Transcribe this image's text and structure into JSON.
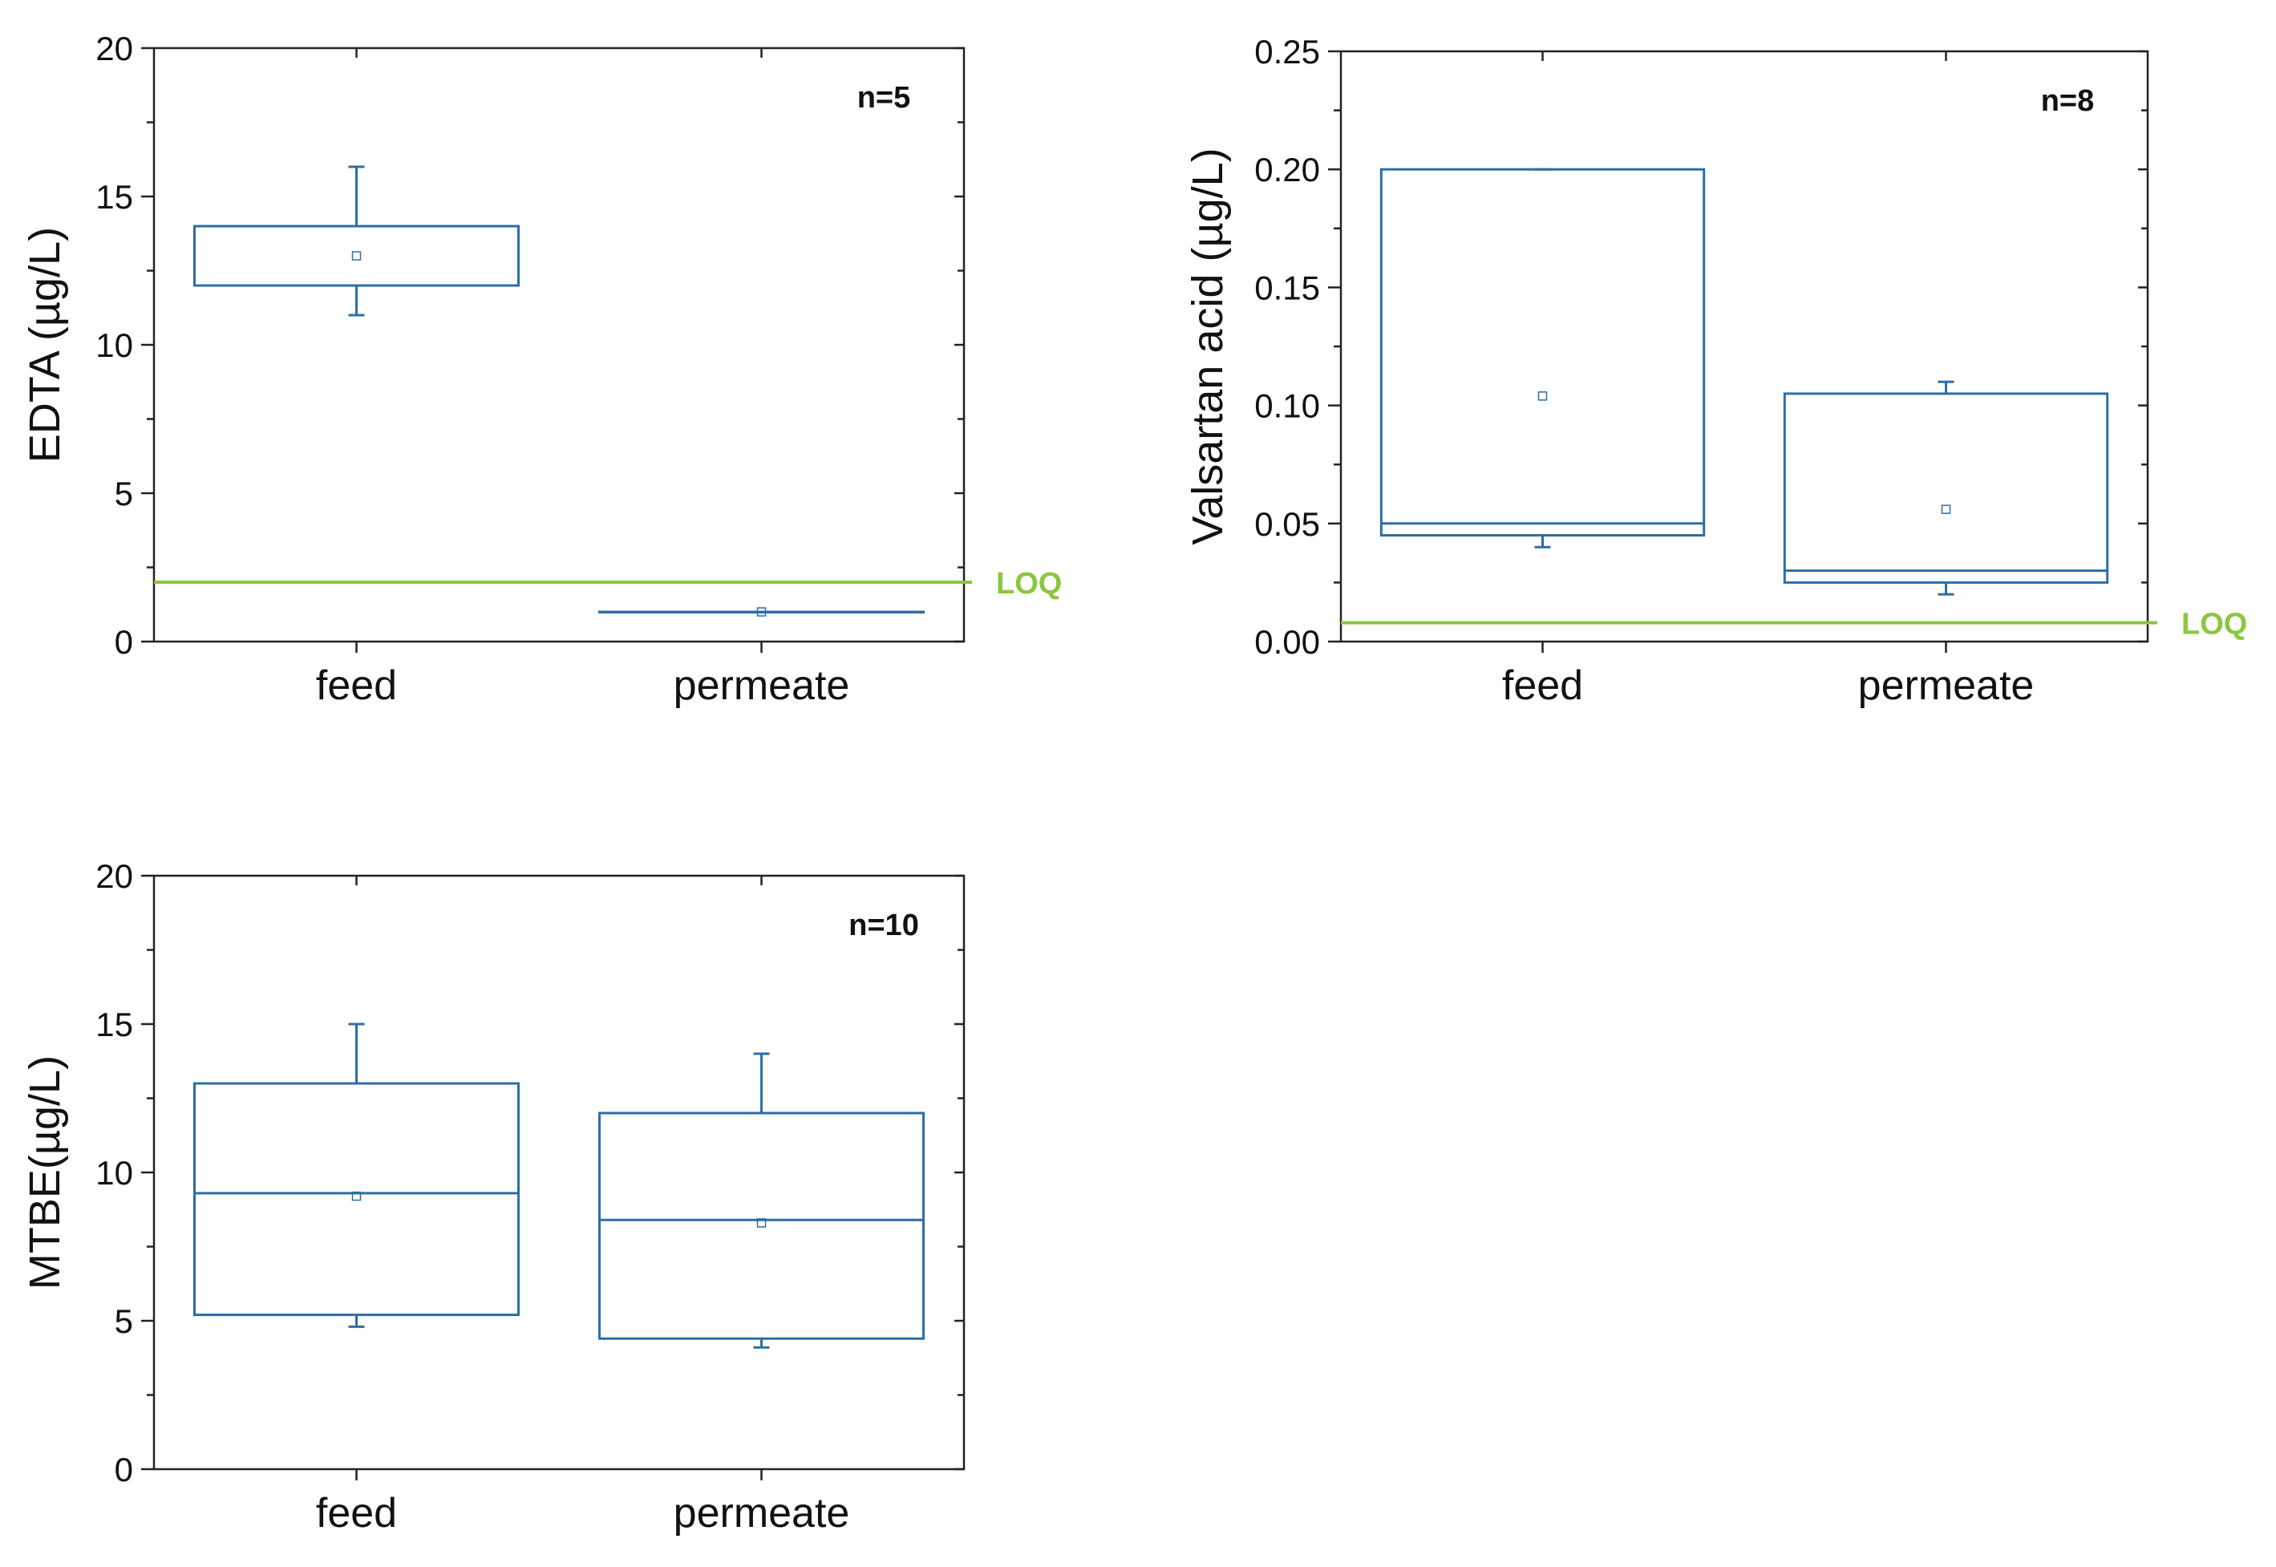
{
  "chart_data": [
    {
      "type": "box",
      "title": "",
      "xlabel": "",
      "ylabel": "EDTA (µg/L)",
      "ylim": [
        0,
        20
      ],
      "yticks": [
        0,
        5,
        10,
        15,
        20
      ],
      "ytick_labels": [
        "0",
        "5",
        "10",
        "15",
        "20"
      ],
      "categories": [
        "feed",
        "permeate"
      ],
      "n_label": "n=5",
      "loq": {
        "label": "LOQ",
        "value": 2
      },
      "boxes": [
        {
          "category": "feed",
          "whisker_low": 11,
          "q1": 12,
          "median": 12,
          "q3": 14,
          "whisker_high": 16,
          "mean": 13
        },
        {
          "category": "permeate",
          "whisker_low": 1,
          "q1": 1,
          "median": 1,
          "q3": 1,
          "whisker_high": 1,
          "mean": 1
        }
      ]
    },
    {
      "type": "box",
      "title": "",
      "xlabel": "",
      "ylabel": "Valsartan acid (µg/L)",
      "ylim": [
        0,
        0.25
      ],
      "yticks": [
        0,
        0.05,
        0.1,
        0.15,
        0.2,
        0.25
      ],
      "ytick_labels": [
        "0.00",
        "0.05",
        "0.10",
        "0.15",
        "0.20",
        "0.25"
      ],
      "categories": [
        "feed",
        "permeate"
      ],
      "n_label": "n=8",
      "loq": {
        "label": "LOQ",
        "value": 0.008
      },
      "boxes": [
        {
          "category": "feed",
          "whisker_low": 0.04,
          "q1": 0.045,
          "median": 0.05,
          "q3": 0.2,
          "whisker_high": 0.2,
          "mean": 0.104
        },
        {
          "category": "permeate",
          "whisker_low": 0.02,
          "q1": 0.025,
          "median": 0.03,
          "q3": 0.105,
          "whisker_high": 0.11,
          "mean": 0.056
        }
      ]
    },
    {
      "type": "box",
      "title": "",
      "xlabel": "",
      "ylabel": "MTBE(µg/L)",
      "ylim": [
        0,
        20
      ],
      "yticks": [
        0,
        5,
        10,
        15,
        20
      ],
      "ytick_labels": [
        "0",
        "5",
        "10",
        "15",
        "20"
      ],
      "categories": [
        "feed",
        "permeate"
      ],
      "n_label": "n=10",
      "loq": null,
      "boxes": [
        {
          "category": "feed",
          "whisker_low": 4.8,
          "q1": 5.2,
          "median": 9.3,
          "q3": 13,
          "whisker_high": 15,
          "mean": 9.2
        },
        {
          "category": "permeate",
          "whisker_low": 4.1,
          "q1": 4.4,
          "median": 8.4,
          "q3": 12,
          "whisker_high": 14,
          "mean": 8.3
        }
      ]
    }
  ],
  "colors": {
    "box": "#2e6da4",
    "loq": "#8cc63f",
    "axis": "#222222"
  }
}
